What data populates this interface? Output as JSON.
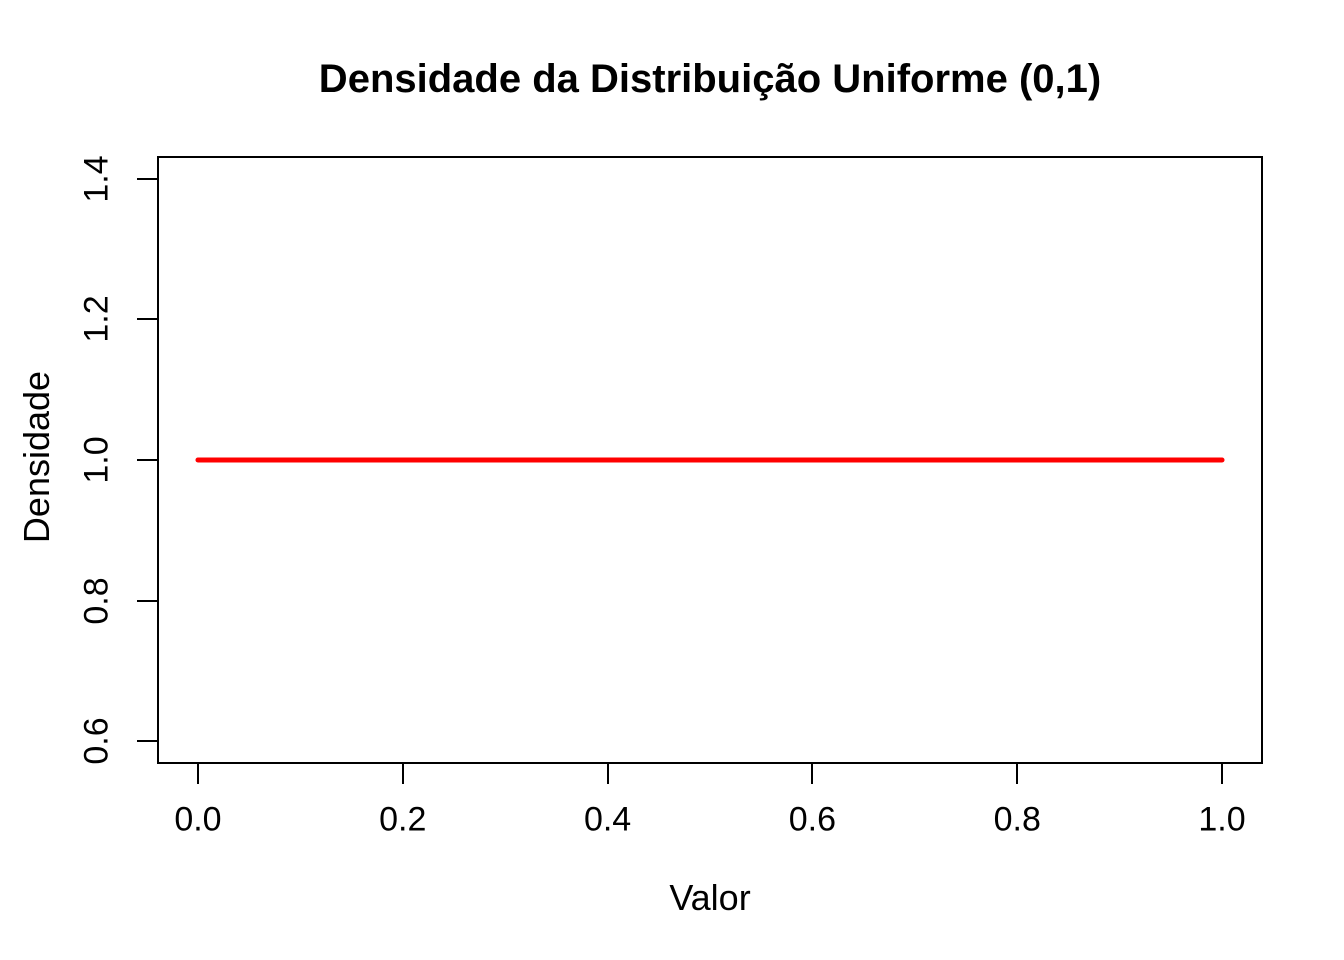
{
  "chart_data": {
    "type": "line",
    "title": "Densidade da Distribuição Uniforme (0,1)",
    "xlabel": "Valor",
    "ylabel": "Densidade",
    "x_tick_labels": [
      "0.0",
      "0.2",
      "0.4",
      "0.6",
      "0.8",
      "1.0"
    ],
    "x_tick_values": [
      0.0,
      0.2,
      0.4,
      0.6,
      0.8,
      1.0
    ],
    "y_tick_labels": [
      "0.6",
      "0.8",
      "1.0",
      "1.2",
      "1.4"
    ],
    "y_tick_values": [
      0.6,
      0.8,
      1.0,
      1.2,
      1.4
    ],
    "xlim": [
      -0.04,
      1.04
    ],
    "ylim": [
      0.568,
      1.432
    ],
    "grid": false,
    "legend": null,
    "axis_color": "#000000",
    "text_color": "#000000",
    "background_color": "#ffffff",
    "series": [
      {
        "name": "density-uniform-0-1",
        "type": "line",
        "color": "#ff0000",
        "linewidth": 5,
        "x": [
          0.0,
          1.0
        ],
        "y": [
          1.0,
          1.0
        ]
      }
    ]
  }
}
